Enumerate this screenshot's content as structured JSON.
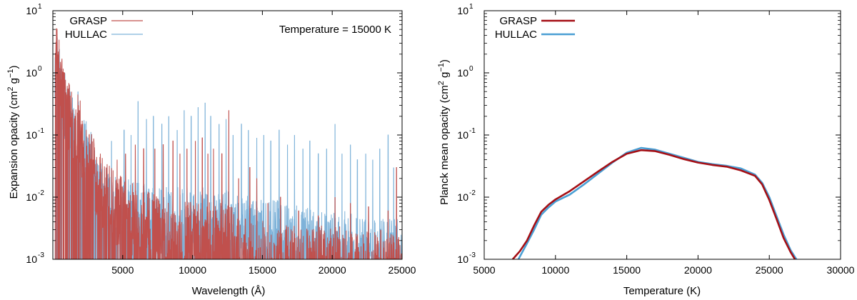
{
  "chart_data": [
    {
      "type": "line",
      "id": "left",
      "title": "",
      "annotation": "Temperature = 15000 K",
      "xlabel": "Wavelength (Å)",
      "ylabel_main": "Expansion opacity (cm",
      "ylabel_mid": " g",
      "ylabel_end": ")",
      "ylabel_sup1": "2",
      "ylabel_sup2": "−1",
      "xlim": [
        0,
        25000
      ],
      "ylim_log10": [
        -3,
        1
      ],
      "yscale": "log",
      "xticks": [
        5000,
        10000,
        15000,
        20000,
        25000
      ],
      "xtick_labels": [
        "5000",
        "10000",
        "15000",
        "20000",
        "25000"
      ],
      "yticks_exp": [
        -3,
        -2,
        -1,
        0,
        1
      ],
      "ytick_base": "10",
      "ytick_exp_labels": [
        "-3",
        "-2",
        "-1",
        "0",
        "1"
      ],
      "legend_position": "top-left",
      "series": [
        {
          "name": "GRASP",
          "color": "#c0504d",
          "style": "thin spectral lines",
          "base_envelope": [
            [
              300,
              1.9
            ],
            [
              600,
              0.8
            ],
            [
              900,
              0.35
            ],
            [
              1500,
              0.22
            ],
            [
              2200,
              0.09
            ],
            [
              3000,
              0.03
            ],
            [
              3800,
              0.012
            ],
            [
              5000,
              0.007
            ],
            [
              7000,
              0.004
            ],
            [
              9000,
              0.003
            ],
            [
              11000,
              0.003
            ],
            [
              12600,
              0.0025
            ],
            [
              14000,
              0.0015
            ],
            [
              18000,
              0.0012
            ],
            [
              25000,
              0.001
            ]
          ],
          "peaks": [
            [
              400,
              2.2
            ],
            [
              800,
              0.55
            ],
            [
              1200,
              0.3
            ],
            [
              1600,
              0.2
            ],
            [
              1900,
              0.25
            ],
            [
              2100,
              0.17
            ],
            [
              2600,
              0.1
            ],
            [
              3400,
              0.05
            ],
            [
              4600,
              0.04
            ],
            [
              5200,
              0.05
            ],
            [
              5900,
              0.07
            ],
            [
              6500,
              0.06
            ],
            [
              7300,
              0.06
            ],
            [
              7900,
              0.07
            ],
            [
              8600,
              0.08
            ],
            [
              9100,
              0.05
            ],
            [
              9600,
              0.06
            ],
            [
              10200,
              0.08
            ],
            [
              10700,
              0.09
            ],
            [
              11100,
              0.05
            ],
            [
              11500,
              0.06
            ],
            [
              12100,
              0.05
            ],
            [
              12600,
              0.25
            ],
            [
              13300,
              0.02
            ],
            [
              14100,
              0.03
            ],
            [
              14600,
              0.02
            ],
            [
              15400,
              0.008
            ],
            [
              16300,
              0.01
            ],
            [
              17600,
              0.006
            ],
            [
              19000,
              0.005
            ],
            [
              20200,
              0.01
            ],
            [
              21300,
              0.008
            ],
            [
              22600,
              0.007
            ],
            [
              24000,
              0.006
            ],
            [
              24600,
              0.03
            ]
          ]
        },
        {
          "name": "HULLAC",
          "color": "#7fb3d9",
          "style": "thin spectral lines",
          "base_envelope": [
            [
              300,
              1.3
            ],
            [
              600,
              0.7
            ],
            [
              900,
              0.3
            ],
            [
              1500,
              0.18
            ],
            [
              2200,
              0.08
            ],
            [
              3000,
              0.025
            ],
            [
              3800,
              0.01
            ],
            [
              5000,
              0.007
            ],
            [
              7000,
              0.005
            ],
            [
              9000,
              0.005
            ],
            [
              11000,
              0.005
            ],
            [
              13000,
              0.004
            ],
            [
              15000,
              0.003
            ],
            [
              17000,
              0.003
            ],
            [
              19000,
              0.002
            ],
            [
              21000,
              0.002
            ],
            [
              23000,
              0.0015
            ],
            [
              25000,
              0.0015
            ]
          ],
          "peaks": [
            [
              500,
              1.0
            ],
            [
              900,
              0.6
            ],
            [
              1400,
              0.4
            ],
            [
              1800,
              0.5
            ],
            [
              2300,
              0.15
            ],
            [
              4200,
              0.08
            ],
            [
              5100,
              0.12
            ],
            [
              5600,
              0.1
            ],
            [
              6100,
              0.35
            ],
            [
              6700,
              0.18
            ],
            [
              7200,
              0.2
            ],
            [
              7800,
              0.15
            ],
            [
              8300,
              0.2
            ],
            [
              8900,
              0.12
            ],
            [
              9400,
              0.25
            ],
            [
              9900,
              0.2
            ],
            [
              10400,
              0.28
            ],
            [
              10900,
              0.33
            ],
            [
              11300,
              0.2
            ],
            [
              11900,
              0.15
            ],
            [
              12400,
              0.18
            ],
            [
              12900,
              0.1
            ],
            [
              13500,
              0.15
            ],
            [
              14000,
              0.12
            ],
            [
              14600,
              0.09
            ],
            [
              15100,
              0.1
            ],
            [
              15600,
              0.08
            ],
            [
              16200,
              0.12
            ],
            [
              16800,
              0.07
            ],
            [
              17300,
              0.1
            ],
            [
              17900,
              0.06
            ],
            [
              18400,
              0.08
            ],
            [
              19000,
              0.05
            ],
            [
              19600,
              0.06
            ],
            [
              20200,
              0.15
            ],
            [
              20700,
              0.05
            ],
            [
              21300,
              0.07
            ],
            [
              21800,
              0.04
            ],
            [
              22400,
              0.05
            ],
            [
              22900,
              0.04
            ],
            [
              23400,
              0.06
            ],
            [
              24000,
              0.1
            ],
            [
              24400,
              0.03
            ]
          ]
        }
      ]
    },
    {
      "type": "line",
      "id": "right",
      "title": "",
      "xlabel": "Temperature (K)",
      "ylabel_main": "Planck mean opacity (cm",
      "ylabel_mid": " g",
      "ylabel_end": ")",
      "ylabel_sup1": "2",
      "ylabel_sup2": "−1",
      "xlim": [
        5000,
        30000
      ],
      "ylim_log10": [
        -3,
        1
      ],
      "yscale": "log",
      "xticks": [
        5000,
        10000,
        15000,
        20000,
        25000,
        30000
      ],
      "xtick_labels": [
        "5000",
        "10000",
        "15000",
        "20000",
        "25000",
        "30000"
      ],
      "yticks_exp": [
        -3,
        -2,
        -1,
        0,
        1
      ],
      "ytick_base": "10",
      "ytick_exp_labels": [
        "-3",
        "-2",
        "-1",
        "0",
        "1"
      ],
      "legend_position": "top-left",
      "series": [
        {
          "name": "GRASP",
          "color": "#a50f15",
          "x": [
            7000,
            7500,
            8000,
            8500,
            9000,
            9500,
            10000,
            11000,
            12000,
            13000,
            14000,
            15000,
            16000,
            17000,
            18000,
            19000,
            20000,
            21000,
            22000,
            23000,
            24000,
            24500,
            25000,
            25500,
            26000,
            26500,
            26800
          ],
          "y": [
            0.001,
            0.00135,
            0.002,
            0.0035,
            0.0058,
            0.0075,
            0.0092,
            0.0125,
            0.018,
            0.026,
            0.037,
            0.05,
            0.057,
            0.055,
            0.048,
            0.041,
            0.036,
            0.033,
            0.031,
            0.027,
            0.022,
            0.016,
            0.009,
            0.0045,
            0.0022,
            0.0013,
            0.001
          ]
        },
        {
          "name": "HULLAC",
          "color": "#4a9fd4",
          "x": [
            7400,
            8000,
            8500,
            9000,
            9500,
            10000,
            11000,
            12000,
            13000,
            14000,
            15000,
            16000,
            17000,
            18000,
            19000,
            20000,
            21000,
            22000,
            23000,
            24000,
            24500,
            25000,
            25500,
            26000,
            26500,
            26900
          ],
          "y": [
            0.001,
            0.0018,
            0.003,
            0.0052,
            0.0068,
            0.0085,
            0.011,
            0.016,
            0.024,
            0.036,
            0.052,
            0.062,
            0.058,
            0.05,
            0.043,
            0.037,
            0.034,
            0.032,
            0.029,
            0.023,
            0.017,
            0.01,
            0.005,
            0.0025,
            0.0014,
            0.001
          ]
        }
      ]
    }
  ]
}
